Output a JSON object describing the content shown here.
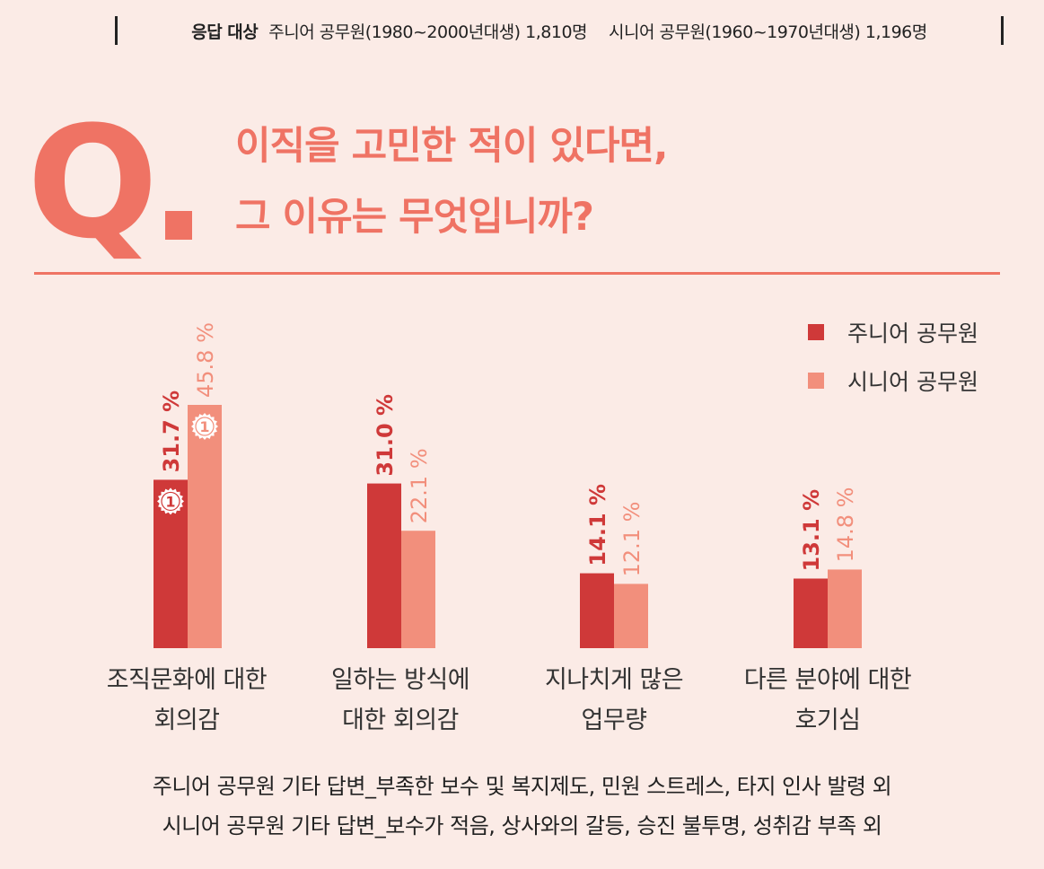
{
  "respondents": {
    "label": "응답 대상",
    "junior": "주니어 공무원(1980~2000년대생) 1,810명",
    "senior": "시니어 공무원(1960~1970년대생) 1,196명"
  },
  "question": {
    "mark": "Q",
    "line1": "이직을 고민한 적이 있다면,",
    "line2": "그 이유는 무엇입니까?"
  },
  "colors": {
    "accent": "#ef7364",
    "junior": "#cf3939",
    "senior": "#f28f7c",
    "background": "#fbebe6"
  },
  "chart_data": {
    "type": "bar",
    "categories": [
      {
        "line1": "조직문화에 대한",
        "line2": "회의감"
      },
      {
        "line1": "일하는 방식에",
        "line2": "대한 회의감"
      },
      {
        "line1": "지나치게 많은",
        "line2": "업무량"
      },
      {
        "line1": "다른 분야에 대한",
        "line2": "호기심"
      }
    ],
    "series": [
      {
        "name": "주니어 공무원",
        "values": [
          31.7,
          31.0,
          14.1,
          13.1
        ],
        "labels": [
          "31.7 %",
          "31.0 %",
          "14.1 %",
          "13.1 %"
        ],
        "color": "#cf3939"
      },
      {
        "name": "시니어 공무원",
        "values": [
          45.8,
          22.1,
          12.1,
          14.8
        ],
        "labels": [
          "45.8 %",
          "22.1 %",
          "12.1 %",
          "14.8 %"
        ],
        "color": "#f28f7c"
      }
    ],
    "rank_badges": [
      {
        "series": 0,
        "category": 0,
        "text": "1"
      },
      {
        "series": 1,
        "category": 0,
        "text": "1"
      }
    ],
    "ylim": [
      0,
      50
    ],
    "legend_position": "top-right",
    "grid": false
  },
  "footnotes": [
    "주니어 공무원 기타 답변_부족한 보수 및 복지제도, 민원 스트레스, 타지 인사 발령 외",
    "시니어 공무원 기타 답변_보수가 적음, 상사와의 갈등, 승진 불투명, 성취감 부족 외"
  ]
}
